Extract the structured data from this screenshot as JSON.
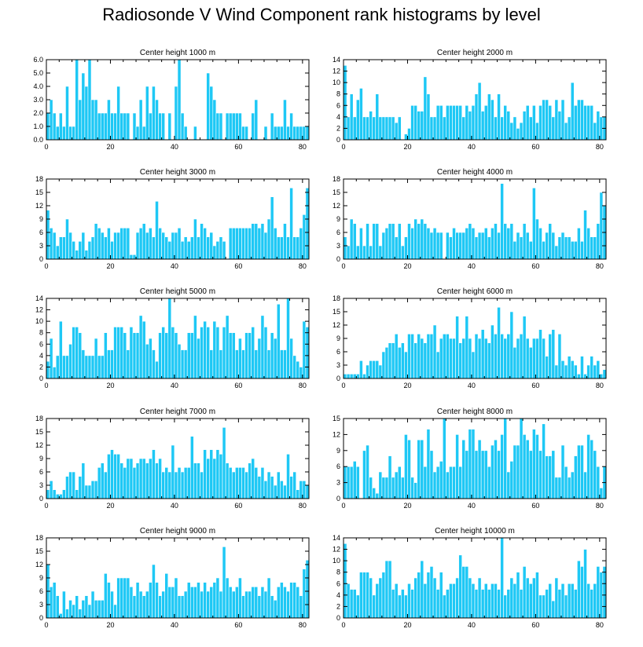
{
  "figure": {
    "title": "Radiosonde V Wind Component rank histograms by level"
  },
  "colors": {
    "bar": "#1ec8f5",
    "bar_edge": "#ffffff",
    "axis": "#000000"
  },
  "chart_data": [
    {
      "type": "bar",
      "title": "Center height 1000 m",
      "xlabel": "",
      "ylabel": "",
      "xlim": [
        0,
        82
      ],
      "ylim": [
        0,
        6
      ],
      "xticks": [
        0,
        20,
        40,
        60,
        80
      ],
      "yticks": [
        0,
        1,
        2,
        3,
        4,
        5,
        6
      ],
      "ytick_labels": [
        "0.0",
        "1.0",
        "2.0",
        "3.0",
        "4.0",
        "5.0",
        "6.0"
      ],
      "values": [
        2,
        3,
        2,
        1,
        2,
        1,
        4,
        1,
        1,
        6,
        3,
        5,
        4,
        6,
        3,
        3,
        2,
        2,
        2,
        3,
        2,
        2,
        4,
        2,
        2,
        2,
        0,
        2,
        1,
        3,
        1,
        4,
        2,
        4,
        3,
        2,
        2,
        0,
        2,
        0,
        4,
        6,
        2,
        1,
        0,
        0,
        1,
        0,
        0,
        0,
        5,
        4,
        3,
        2,
        2,
        0,
        2,
        2,
        2,
        2,
        2,
        1,
        1,
        0,
        2,
        3,
        0,
        0,
        1,
        0,
        2,
        1,
        1,
        1,
        3,
        1,
        2,
        1,
        1,
        1,
        1,
        1
      ]
    },
    {
      "type": "bar",
      "title": "Center height 2000 m",
      "xlabel": "",
      "ylabel": "",
      "xlim": [
        0,
        82
      ],
      "ylim": [
        0,
        14
      ],
      "xticks": [
        0,
        20,
        40,
        60,
        80
      ],
      "yticks": [
        0,
        2,
        4,
        6,
        8,
        10,
        12,
        14
      ],
      "ytick_labels": [
        "0",
        "2",
        "4",
        "6",
        "8",
        "10",
        "12",
        "14"
      ],
      "values": [
        13,
        4,
        8,
        4,
        7,
        9,
        4,
        4,
        5,
        4,
        8,
        4,
        4,
        4,
        4,
        4,
        3,
        4,
        0,
        1,
        2,
        6,
        6,
        5,
        5,
        11,
        8,
        4,
        4,
        6,
        6,
        4,
        6,
        6,
        6,
        6,
        6,
        4,
        6,
        5,
        6,
        8,
        10,
        5,
        6,
        8,
        7,
        4,
        8,
        4,
        6,
        5,
        3,
        4,
        2,
        3,
        5,
        6,
        4,
        6,
        3,
        6,
        7,
        7,
        6,
        4,
        7,
        5,
        7,
        3,
        4,
        10,
        6,
        7,
        7,
        6,
        6,
        6,
        3,
        5,
        4,
        4
      ]
    },
    {
      "type": "bar",
      "title": "Center height 3000 m",
      "xlabel": "",
      "ylabel": "",
      "xlim": [
        0,
        82
      ],
      "ylim": [
        0,
        18
      ],
      "xticks": [
        0,
        20,
        40,
        60,
        80
      ],
      "yticks": [
        0,
        3,
        6,
        9,
        12,
        15,
        18
      ],
      "ytick_labels": [
        "0",
        "3",
        "6",
        "9",
        "12",
        "15",
        "18"
      ],
      "values": [
        11,
        7,
        6,
        3,
        5,
        5,
        9,
        6,
        4,
        2,
        4,
        6,
        2,
        4,
        5,
        8,
        7,
        6,
        5,
        7,
        4,
        6,
        6,
        7,
        7,
        7,
        1,
        1,
        6,
        7,
        8,
        6,
        7,
        5,
        13,
        7,
        6,
        5,
        4,
        6,
        6,
        7,
        4,
        5,
        4,
        5,
        9,
        5,
        8,
        7,
        5,
        6,
        3,
        4,
        5,
        4,
        0,
        7,
        7,
        7,
        7,
        7,
        7,
        7,
        8,
        8,
        7,
        8,
        6,
        9,
        14,
        7,
        5,
        5,
        8,
        5,
        16,
        5,
        5,
        7,
        10,
        16
      ]
    },
    {
      "type": "bar",
      "title": "Center height 4000 m",
      "xlabel": "",
      "ylabel": "",
      "xlim": [
        0,
        82
      ],
      "ylim": [
        0,
        18
      ],
      "xticks": [
        0,
        20,
        40,
        60,
        80
      ],
      "yticks": [
        0,
        3,
        6,
        9,
        12,
        15,
        18
      ],
      "ytick_labels": [
        "0",
        "3",
        "6",
        "9",
        "12",
        "15",
        "18"
      ],
      "values": [
        5,
        3,
        9,
        8,
        3,
        7,
        3,
        8,
        3,
        8,
        8,
        3,
        6,
        7,
        8,
        8,
        5,
        8,
        3,
        5,
        8,
        7,
        9,
        8,
        9,
        8,
        7,
        6,
        7,
        6,
        6,
        0,
        6,
        5,
        7,
        6,
        6,
        6,
        7,
        8,
        7,
        5,
        6,
        6,
        7,
        5,
        7,
        8,
        6,
        17,
        8,
        7,
        8,
        4,
        6,
        5,
        8,
        6,
        4,
        16,
        9,
        7,
        4,
        6,
        8,
        6,
        3,
        5,
        6,
        5,
        5,
        4,
        4,
        7,
        4,
        11,
        7,
        5,
        5,
        8,
        15,
        12
      ]
    },
    {
      "type": "bar",
      "title": "Center height 5000 m",
      "xlabel": "",
      "ylabel": "",
      "xlim": [
        0,
        82
      ],
      "ylim": [
        0,
        14
      ],
      "xticks": [
        0,
        20,
        40,
        60,
        80
      ],
      "yticks": [
        0,
        2,
        4,
        6,
        8,
        10,
        12,
        14
      ],
      "ytick_labels": [
        "0",
        "2",
        "4",
        "6",
        "8",
        "10",
        "12",
        "14"
      ],
      "values": [
        3,
        7,
        2,
        4,
        10,
        4,
        4,
        6,
        9,
        9,
        8,
        5,
        4,
        4,
        4,
        7,
        4,
        4,
        8,
        5,
        5,
        9,
        9,
        9,
        8,
        5,
        9,
        8,
        8,
        11,
        10,
        6,
        7,
        5,
        3,
        8,
        9,
        8,
        14,
        9,
        8,
        6,
        5,
        5,
        8,
        8,
        11,
        7,
        9,
        10,
        9,
        5,
        10,
        9,
        5,
        9,
        11,
        8,
        8,
        5,
        7,
        5,
        8,
        8,
        9,
        5,
        7,
        11,
        9,
        5,
        8,
        7,
        13,
        5,
        5,
        14,
        7,
        4,
        3,
        2,
        10,
        9
      ]
    },
    {
      "type": "bar",
      "title": "Center height 6000 m",
      "xlabel": "",
      "ylabel": "",
      "xlim": [
        0,
        82
      ],
      "ylim": [
        0,
        18
      ],
      "xticks": [
        0,
        20,
        40,
        60,
        80
      ],
      "yticks": [
        0,
        3,
        6,
        9,
        12,
        15,
        18
      ],
      "ytick_labels": [
        "0",
        "3",
        "6",
        "9",
        "12",
        "15",
        "18"
      ],
      "values": [
        1,
        1,
        1,
        1,
        1,
        4,
        1,
        3,
        4,
        4,
        4,
        3,
        6,
        7,
        8,
        8,
        10,
        7,
        8,
        6,
        10,
        10,
        8,
        10,
        9,
        8,
        10,
        10,
        12,
        6,
        9,
        10,
        10,
        9,
        9,
        14,
        8,
        9,
        14,
        9,
        6,
        10,
        9,
        11,
        9,
        8,
        12,
        10,
        16,
        10,
        9,
        10,
        15,
        7,
        9,
        10,
        14,
        9,
        7,
        9,
        9,
        11,
        9,
        5,
        10,
        11,
        3,
        10,
        4,
        3,
        5,
        4,
        3,
        1,
        5,
        1,
        3,
        5,
        3,
        4,
        1,
        2
      ]
    },
    {
      "type": "bar",
      "title": "Center height 7000 m",
      "xlabel": "",
      "ylabel": "",
      "xlim": [
        0,
        82
      ],
      "ylim": [
        0,
        18
      ],
      "xticks": [
        0,
        20,
        40,
        60,
        80
      ],
      "yticks": [
        0,
        3,
        6,
        9,
        12,
        15,
        18
      ],
      "ytick_labels": [
        "0",
        "3",
        "6",
        "9",
        "12",
        "15",
        "18"
      ],
      "values": [
        2,
        4,
        2,
        1,
        1,
        2,
        5,
        6,
        6,
        2,
        5,
        8,
        3,
        3,
        4,
        4,
        7,
        8,
        6,
        10,
        11,
        10,
        10,
        8,
        7,
        9,
        9,
        7,
        8,
        9,
        9,
        8,
        9,
        11,
        8,
        9,
        6,
        7,
        6,
        12,
        6,
        7,
        6,
        7,
        7,
        14,
        8,
        8,
        6,
        11,
        9,
        11,
        9,
        11,
        10,
        16,
        8,
        7,
        6,
        7,
        7,
        7,
        6,
        8,
        9,
        7,
        5,
        7,
        4,
        6,
        5,
        3,
        6,
        4,
        3,
        10,
        5,
        6,
        2,
        4,
        4,
        3
      ]
    },
    {
      "type": "bar",
      "title": "Center height 8000 m",
      "xlabel": "",
      "ylabel": "",
      "xlim": [
        0,
        82
      ],
      "ylim": [
        0,
        15
      ],
      "xticks": [
        0,
        20,
        40,
        60,
        80
      ],
      "yticks": [
        0,
        3,
        6,
        9,
        12,
        15
      ],
      "ytick_labels": [
        "0",
        "3",
        "6",
        "9",
        "12",
        "15"
      ],
      "values": [
        6,
        6,
        6,
        7,
        6,
        0,
        9,
        10,
        4,
        2,
        1,
        5,
        4,
        4,
        8,
        4,
        5,
        6,
        4,
        12,
        11,
        4,
        3,
        11,
        11,
        6,
        13,
        9,
        5,
        6,
        7,
        15,
        5,
        6,
        6,
        12,
        6,
        11,
        9,
        13,
        13,
        9,
        11,
        9,
        9,
        6,
        10,
        11,
        9,
        12,
        15,
        5,
        7,
        10,
        10,
        15,
        12,
        11,
        9,
        13,
        12,
        9,
        14,
        8,
        8,
        9,
        4,
        4,
        10,
        6,
        4,
        5,
        8,
        10,
        10,
        5,
        12,
        11,
        9,
        6,
        2,
        6
      ]
    },
    {
      "type": "bar",
      "title": "Center height 9000 m",
      "xlabel": "",
      "ylabel": "",
      "xlim": [
        0,
        82
      ],
      "ylim": [
        0,
        18
      ],
      "xticks": [
        0,
        20,
        40,
        60,
        80
      ],
      "yticks": [
        0,
        3,
        6,
        9,
        12,
        15,
        18
      ],
      "ytick_labels": [
        "0",
        "3",
        "6",
        "9",
        "12",
        "15",
        "18"
      ],
      "values": [
        12,
        7,
        8,
        5,
        1,
        6,
        2,
        4,
        3,
        5,
        2,
        4,
        5,
        3,
        6,
        4,
        4,
        4,
        10,
        8,
        6,
        3,
        9,
        9,
        9,
        9,
        7,
        5,
        8,
        6,
        5,
        6,
        8,
        12,
        8,
        5,
        6,
        10,
        7,
        7,
        9,
        5,
        5,
        6,
        8,
        7,
        7,
        8,
        6,
        8,
        6,
        7,
        8,
        9,
        6,
        16,
        9,
        7,
        6,
        7,
        9,
        5,
        6,
        6,
        7,
        7,
        5,
        7,
        6,
        9,
        5,
        4,
        7,
        8,
        7,
        6,
        8,
        8,
        7,
        5,
        11,
        13
      ]
    },
    {
      "type": "bar",
      "title": "Center height 10000 m",
      "xlabel": "",
      "ylabel": "",
      "xlim": [
        0,
        82
      ],
      "ylim": [
        0,
        14
      ],
      "xticks": [
        0,
        20,
        40,
        60,
        80
      ],
      "yticks": [
        0,
        2,
        4,
        6,
        8,
        10,
        12,
        14
      ],
      "ytick_labels": [
        "0",
        "2",
        "4",
        "6",
        "8",
        "10",
        "12",
        "14"
      ],
      "values": [
        13,
        6,
        5,
        5,
        4,
        8,
        8,
        8,
        7,
        4,
        6,
        7,
        8,
        10,
        10,
        5,
        6,
        4,
        5,
        4,
        6,
        5,
        7,
        8,
        10,
        6,
        8,
        9,
        7,
        5,
        8,
        4,
        5,
        6,
        6,
        7,
        11,
        9,
        9,
        7,
        6,
        5,
        7,
        5,
        6,
        5,
        6,
        6,
        5,
        14,
        4,
        5,
        7,
        6,
        8,
        5,
        9,
        7,
        6,
        7,
        8,
        4,
        4,
        5,
        6,
        3,
        7,
        5,
        6,
        4,
        6,
        6,
        5,
        10,
        9,
        12,
        6,
        5,
        6,
        9,
        8,
        9
      ]
    }
  ]
}
